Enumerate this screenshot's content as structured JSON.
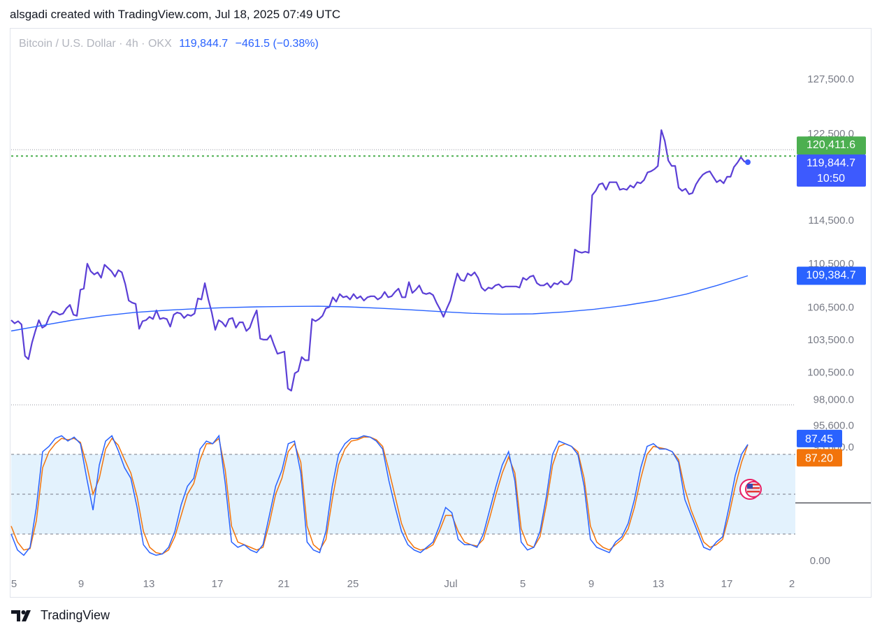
{
  "header": {
    "attribution": "alsgadi created with TradingView.com, Jul 18, 2025 07:49 UTC"
  },
  "legend": {
    "symbol": "Bitcoin / U.S. Dollar · 4h · OKX",
    "last": "119,844.7",
    "change": "−461.5 (−0.38%)"
  },
  "footer": {
    "brand": "TradingView",
    "logo_icon": "tradingview-logo-icon"
  },
  "colors": {
    "price_line": "#5b3fd6",
    "ma_line": "#2962ff",
    "stoch_k": "#2962ff",
    "stoch_d": "#f2740b",
    "band_fill": "#e3f2fd",
    "high_tag": "#4caf50",
    "last_tag": "#3d5afe"
  },
  "chart_data": [
    {
      "type": "line",
      "panel": "price",
      "ylim": [
        93600,
        127500
      ],
      "y_ticks": [
        "127,500.0",
        "122,500.0",
        "114,500.0",
        "110,500.0",
        "106,500.0",
        "103,500.0",
        "100,500.0",
        "98,000.0",
        "95,600.0",
        "93,600.0"
      ],
      "x_ticks": [
        "5",
        "9",
        "13",
        "17",
        "21",
        "25",
        "Jul",
        "5",
        "9",
        "13",
        "17",
        "2"
      ],
      "series": [
        {
          "values": [
            105300,
            105000,
            105200,
            104900,
            102000,
            101700,
            103200,
            104300,
            105300,
            104600,
            104800,
            105600,
            106100,
            106000,
            105800,
            105900,
            106400,
            106700,
            105800,
            105700,
            108100,
            108200,
            110500,
            109800,
            109500,
            109700,
            109200,
            110400,
            110100,
            109800,
            109300,
            109900,
            109700,
            108600,
            107100,
            106900,
            106800,
            104500,
            105200,
            105300,
            105600,
            105400,
            106200,
            105400,
            105500,
            105400,
            104700,
            105800,
            106000,
            105900,
            105500,
            105800,
            105700,
            105900,
            107300,
            107200,
            108700,
            107200,
            106000,
            104400,
            105300,
            105100,
            104700,
            105400,
            105500,
            104600,
            105100,
            105100,
            104300,
            104600,
            105500,
            106200,
            103600,
            103500,
            103500,
            103900,
            103000,
            102200,
            102300,
            102400,
            99000,
            98800,
            100400,
            100600,
            101900,
            101600,
            101600,
            105400,
            105200,
            105400,
            105700,
            106400,
            106500,
            107400,
            107000,
            107700,
            107400,
            107500,
            107200,
            107700,
            107300,
            107500,
            107100,
            107400,
            107500,
            107500,
            107200,
            107400,
            107900,
            107400,
            107500,
            107900,
            108200,
            107400,
            107400,
            108800,
            107800,
            108100,
            108500,
            107800,
            107700,
            107800,
            107600,
            106900,
            106300,
            105600,
            106400,
            107100,
            108400,
            109600,
            109000,
            108900,
            109600,
            109400,
            109700,
            109200,
            108300,
            108000,
            108300,
            108200,
            108500,
            108600,
            108300,
            108400,
            108400,
            108400,
            108400,
            108300,
            109200,
            109000,
            109300,
            109400,
            108700,
            108500,
            108500,
            108700,
            108300,
            108700,
            108600,
            108900,
            108600,
            108600,
            109000,
            111800,
            111600,
            111500,
            111600,
            111500,
            116800,
            117200,
            117800,
            117900,
            117300,
            118000,
            118000,
            118000,
            117300,
            117400,
            117300,
            117700,
            117500,
            118000,
            117900,
            118200,
            118900,
            119000,
            119200,
            119500,
            122800,
            121800,
            120000,
            119500,
            119500,
            117500,
            117200,
            117400,
            116900,
            117000,
            117800,
            118300,
            118700,
            118900,
            119000,
            118500,
            118000,
            118200,
            117900,
            118500,
            118500,
            119400,
            119800,
            120300,
            119900,
            119844.7
          ]
        },
        {
          "name": "",
          "values": [
            104300,
            104800,
            105300,
            105700,
            106000,
            106200,
            106350,
            106450,
            106520,
            106560,
            106580,
            106520,
            106400,
            106250,
            106080,
            105930,
            105850,
            105880,
            106050,
            106300,
            106650,
            107100,
            107700,
            108500,
            109384.7
          ]
        }
      ],
      "high_line": 120411.6,
      "last_price_label": "119,844.7",
      "countdown": "10:50",
      "high_label": "120,411.6",
      "ma_label": "109,384.7"
    },
    {
      "type": "line",
      "panel": "stochastic",
      "ylim": [
        0,
        100
      ],
      "y_ticks": [
        "0.00"
      ],
      "band": [
        20,
        80
      ],
      "series": [
        {
          "values": [
            20,
            8,
            4,
            10,
            40,
            82,
            86,
            92,
            94,
            90,
            93,
            88,
            62,
            38,
            72,
            90,
            94,
            83,
            70,
            62,
            40,
            12,
            6,
            4,
            5,
            10,
            22,
            42,
            56,
            62,
            84,
            90,
            88,
            94,
            58,
            14,
            10,
            12,
            8,
            6,
            12,
            34,
            56,
            68,
            88,
            90,
            66,
            14,
            8,
            6,
            22,
            56,
            80,
            88,
            92,
            92,
            94,
            93,
            90,
            84,
            60,
            40,
            22,
            12,
            8,
            6,
            10,
            14,
            26,
            40,
            36,
            16,
            12,
            12,
            10,
            20,
            38,
            56,
            72,
            82,
            60,
            14,
            8,
            10,
            22,
            48,
            80,
            90,
            88,
            86,
            80,
            56,
            16,
            10,
            8,
            6,
            14,
            18,
            28,
            46,
            70,
            86,
            88,
            84,
            84,
            82,
            74,
            46,
            34,
            22,
            10,
            8,
            14,
            18,
            40,
            64,
            80,
            87.45
          ]
        },
        {
          "values": [
            26,
            14,
            8,
            9,
            30,
            70,
            82,
            88,
            92,
            91,
            92,
            89,
            72,
            50,
            62,
            84,
            92,
            87,
            76,
            66,
            48,
            22,
            10,
            6,
            5,
            8,
            18,
            34,
            50,
            58,
            76,
            88,
            88,
            92,
            68,
            26,
            14,
            12,
            10,
            8,
            10,
            28,
            50,
            62,
            82,
            88,
            74,
            26,
            12,
            8,
            16,
            46,
            72,
            84,
            90,
            91,
            93,
            93,
            91,
            86,
            68,
            48,
            28,
            16,
            10,
            8,
            9,
            12,
            22,
            34,
            34,
            22,
            14,
            12,
            11,
            16,
            32,
            50,
            66,
            78,
            66,
            24,
            12,
            10,
            18,
            42,
            72,
            86,
            88,
            86,
            82,
            62,
            26,
            14,
            10,
            8,
            12,
            16,
            24,
            40,
            62,
            80,
            86,
            85,
            84,
            82,
            76,
            54,
            38,
            26,
            14,
            10,
            12,
            16,
            34,
            56,
            74,
            87.2
          ]
        }
      ],
      "k_label": "87.45",
      "d_label": "87.20"
    }
  ]
}
